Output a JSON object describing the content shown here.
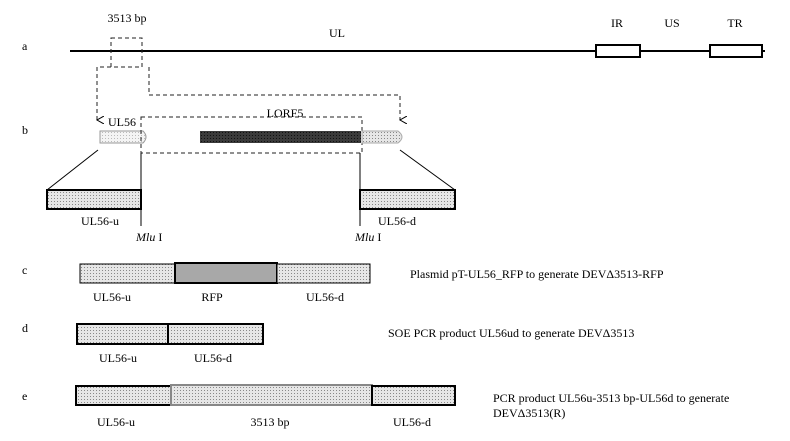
{
  "row_a": {
    "label": "a",
    "deletion_size": "3513 bp",
    "regions": [
      "UL",
      "IR",
      "US",
      "TR"
    ]
  },
  "row_b": {
    "label": "b",
    "gene_left": "UL56",
    "gene_middle": "LORF5",
    "arm_left": "UL56-u",
    "arm_right": "UL56-d",
    "site_enzyme": "Mlu",
    "site_suffix": "I"
  },
  "row_c": {
    "label": "c",
    "segments": [
      "UL56-u",
      "RFP",
      "UL56-d"
    ],
    "description": "Plasmid pT-UL56_RFP to generate DEVΔ3513-RFP"
  },
  "row_d": {
    "label": "d",
    "segments": [
      "UL56-u",
      "UL56-d"
    ],
    "description": "SOE PCR product UL56ud to generate DEVΔ3513"
  },
  "row_e": {
    "label": "e",
    "segments": [
      "UL56-u",
      "3513 bp",
      "UL56-d"
    ],
    "description_lines": [
      "PCR product UL56u-3513 bp-UL56d to generate",
      "DEVΔ3513(R)"
    ]
  }
}
